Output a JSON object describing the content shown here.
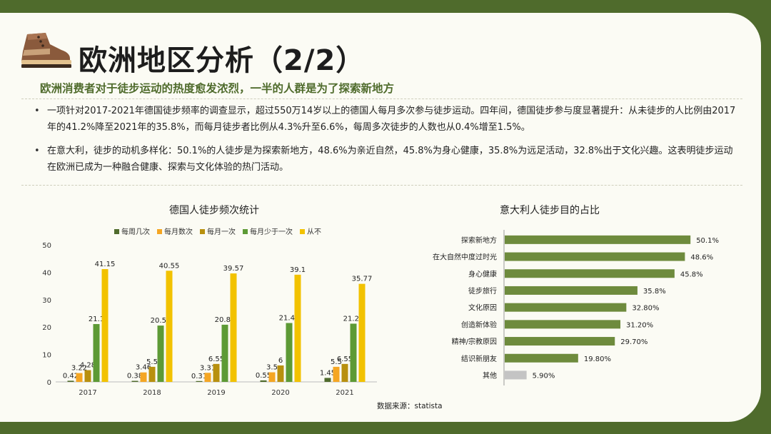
{
  "page": {
    "title": "欧洲地区分析（2/2）",
    "subtitle": "欧洲消费者对于徒步运动的热度愈发浓烈，一半的人群是为了探索新地方",
    "bullets": [
      "一项针对2017-2021年德国徒步频率的调查显示，超过550万14岁以上的德国人每月多次参与徒步运动。四年间，德国徒步参与度显著提升：从未徒步的人比例由2017年的41.2%降至2021年的35.8%，而每月徒步者比例从4.3%升至6.6%，每周多次徒步的人数也从0.4%增至1.5%。",
      "在意大利，徒步的动机多样化：50.1%的人徒步是为探索新地方，48.6%为亲近自然，45.8%为身心健康，35.8%为远足活动，32.8%出于文化兴趣。这表明徒步运动在欧洲已成为一种融合健康、探索与文化体验的热门活动。"
    ],
    "source": "数据来源：statista",
    "colors": {
      "brand": "#4f6b2c",
      "card": "#fbfbf4"
    },
    "icons": {
      "logo": "hiking-boot-icon"
    }
  },
  "chart_data": [
    {
      "type": "bar",
      "title": "德国人徒步频次统计",
      "categories": [
        "2017",
        "2018",
        "2019",
        "2020",
        "2021"
      ],
      "ylim": [
        0,
        50
      ],
      "yticks": [
        0,
        10,
        20,
        30,
        40,
        50
      ],
      "legend_position": "top",
      "series": [
        {
          "name": "每周几次",
          "color": "#4f6b2c",
          "values": [
            0.42,
            0.38,
            0.31,
            0.55,
            1.45
          ],
          "labels": [
            "0.42",
            "0.38",
            "0.31",
            "0.55",
            "1.45"
          ]
        },
        {
          "name": "每月数次",
          "color": "#f5a623",
          "values": [
            3.22,
            3.46,
            3.31,
            3.5,
            5.5
          ],
          "labels": [
            "3.22",
            "3.46",
            "3.31",
            "3.5",
            "5.5"
          ]
        },
        {
          "name": "每月一次",
          "color": "#b8900e",
          "values": [
            4.28,
            5.5,
            6.55,
            6,
            6.55
          ],
          "labels": [
            "4.28",
            "5.5",
            "6.55",
            "6",
            "6.55"
          ]
        },
        {
          "name": "每月少于一次",
          "color": "#5d9a35",
          "values": [
            21.1,
            20.55,
            20.86,
            21.48,
            21.24
          ],
          "labels": [
            "21.1",
            "20.55",
            "20.86",
            "21.48",
            "21.24"
          ]
        },
        {
          "name": "从不",
          "color": "#f2c200",
          "values": [
            41.15,
            40.55,
            39.57,
            39.1,
            35.77
          ],
          "labels": [
            "41.15",
            "40.55",
            "39.57",
            "39.1",
            "35.77"
          ]
        }
      ]
    },
    {
      "type": "bar",
      "orientation": "horizontal",
      "title": "意大利人徒步目的占比",
      "categories": [
        "探索新地方",
        "在大自然中度过时光",
        "身心健康",
        "徒步旅行",
        "文化原因",
        "创造新体验",
        "精神/宗教原因",
        "结识新朋友",
        "其他"
      ],
      "values": [
        50.1,
        48.6,
        45.8,
        35.8,
        32.8,
        31.2,
        29.7,
        19.8,
        5.9
      ],
      "labels": [
        "50.1%",
        "48.6%",
        "45.8%",
        "35.8%",
        "32.80%",
        "31.20%",
        "29.70%",
        "19.80%",
        "5.90%"
      ],
      "xlim": [
        0,
        62
      ],
      "colors": [
        "#6e8b3d",
        "#6e8b3d",
        "#6e8b3d",
        "#6e8b3d",
        "#6e8b3d",
        "#6e8b3d",
        "#6e8b3d",
        "#6e8b3d",
        "#c4c4c4"
      ]
    }
  ]
}
